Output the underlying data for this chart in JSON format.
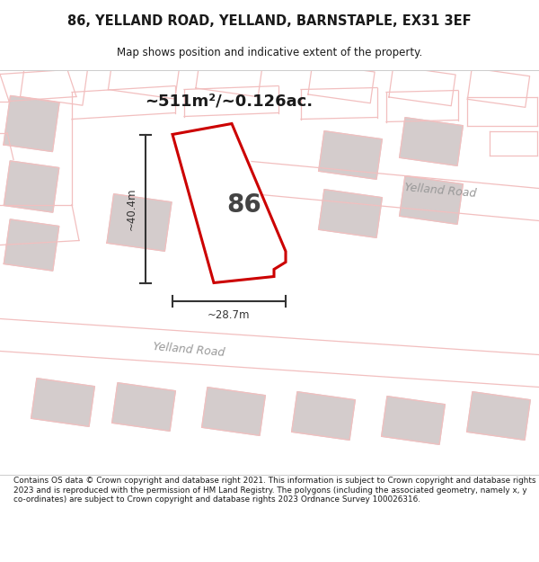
{
  "title_line1": "86, YELLAND ROAD, YELLAND, BARNSTAPLE, EX31 3EF",
  "title_line2": "Map shows position and indicative extent of the property.",
  "area_label": "~511m²/~0.126ac.",
  "width_label": "~28.7m",
  "height_label": "~40.4m",
  "plot_number": "86",
  "footer_text": "Contains OS data © Crown copyright and database right 2021. This information is subject to Crown copyright and database rights 2023 and is reproduced with the permission of HM Land Registry. The polygons (including the associated geometry, namely x, y co-ordinates) are subject to Crown copyright and database rights 2023 Ordnance Survey 100026316.",
  "bg_color": "#faf6f6",
  "road_pink": "#f2bfbf",
  "building_gray": "#d4cccc",
  "plot_fill": "#ffffff",
  "plot_outline": "#cc0000",
  "dim_color": "#333333",
  "text_dark": "#1a1a1a",
  "road_text": "#999999",
  "header_bg": "#ffffff",
  "footer_bg": "#ffffff",
  "map_bg": "#f5eded"
}
